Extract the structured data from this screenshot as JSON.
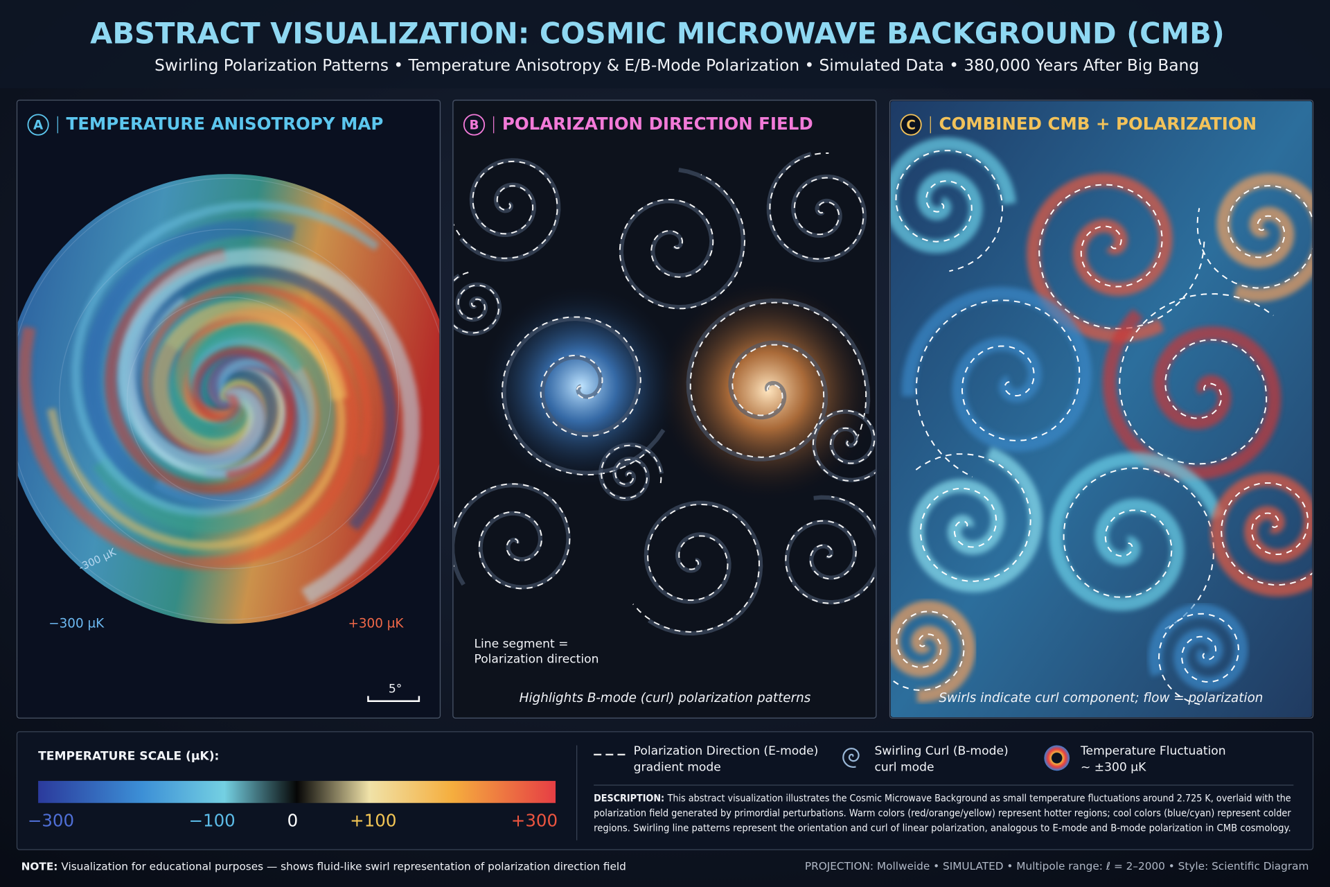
{
  "header": {
    "title": "ABSTRACT VISUALIZATION: COSMIC MICROWAVE BACKGROUND (CMB)",
    "subtitle": "Swirling Polarization Patterns • Temperature Anisotropy & E/B-Mode Polarization • Simulated Data • 380,000 Years After Big Bang"
  },
  "panels": [
    {
      "letter": "A",
      "title": "TEMPERATURE ANISOTROPY MAP",
      "color": "#5cc6ee",
      "annotations": [
        "−300 µK",
        "+300 µK",
        "-300 µK",
        "5°"
      ]
    },
    {
      "letter": "B",
      "title": "POLARIZATION DIRECTION FIELD",
      "color": "#f27ad8",
      "annotations": [
        "Line segment =",
        "Polarization direction"
      ],
      "caption": "Highlights B-mode (curl) polarization patterns"
    },
    {
      "letter": "C",
      "title": "COMBINED CMB + POLARIZATION",
      "color": "#f2c25a",
      "caption": "Swirls indicate curl component; flow = polarization"
    }
  ],
  "scale": {
    "title": "TEMPERATURE SCALE (µK):",
    "range": [
      -300,
      300
    ],
    "ticks": [
      {
        "value": -300,
        "label": "−300",
        "color": "#4f6fd6"
      },
      {
        "value": -100,
        "label": "−100",
        "color": "#5cbce8"
      },
      {
        "value": 0,
        "label": "0",
        "color": "#ffffff"
      },
      {
        "value": 100,
        "label": "+100",
        "color": "#f2c555"
      },
      {
        "value": 300,
        "label": "+300",
        "color": "#ec5540"
      }
    ]
  },
  "legend": [
    {
      "title": "Polarization Direction (E-mode)",
      "subtitle": "gradient mode"
    },
    {
      "title": "Swirling Curl (B-mode)",
      "subtitle": "curl mode"
    },
    {
      "title": "Temperature Fluctuation",
      "subtitle": "~ ±300 µK"
    }
  ],
  "description": {
    "label": "DESCRIPTION:",
    "lines": [
      "This abstract visualization illustrates the Cosmic Microwave Background as small temperature fluctuations around 2.725 K, overlaid with the",
      "polarization field generated by primordial perturbations. Warm colors (red/orange/yellow) represent hotter regions; cool colors (blue/cyan) represent colder",
      "regions. Swirling line patterns represent the orientation and curl of linear polarization, analogous to E-mode and B-mode polarization in CMB cosmology."
    ]
  },
  "footer": {
    "note_label": "NOTE:",
    "note": "Visualization for educational purposes — shows fluid-like swirl representation of polarization direction field",
    "meta": "PROJECTION: Mollweide • SIMULATED • Multipole range: ℓ = 2–2000 • Style: Scientific Diagram"
  }
}
